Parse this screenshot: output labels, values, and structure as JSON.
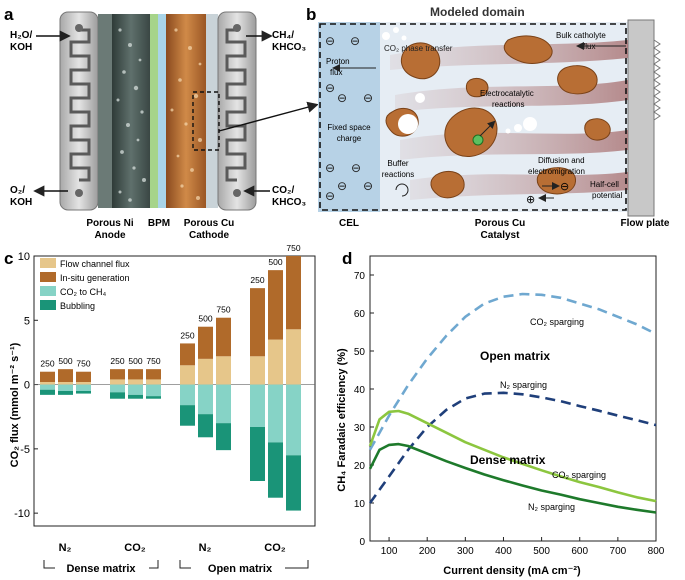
{
  "panel_a": {
    "letter": "a",
    "top_left_in": [
      "H₂O/",
      "KOH"
    ],
    "bottom_left_out": [
      "O₂/",
      "KOH"
    ],
    "top_right_out": [
      "CH₄/",
      "KHCO₃"
    ],
    "bottom_right_in": [
      "CO₂/",
      "KHCO₃"
    ],
    "labels": {
      "anode": [
        "Porous Ni",
        "Anode"
      ],
      "bpm": "BPM",
      "cathode": [
        "Porous Cu",
        "Cathode"
      ]
    }
  },
  "panel_b": {
    "letter": "b",
    "title": "Modeled domain",
    "cel_label": "CEL",
    "catalyst_label": [
      "Porous Cu",
      "Catalyst"
    ],
    "flow_plate_label": "Flow plate",
    "proton_flux": [
      "Proton",
      "flux"
    ],
    "fixed_charge": [
      "Fixed space",
      "charge"
    ],
    "co2_transfer": "CO₂ phase transfer",
    "bulk_flux": [
      "Bulk catholyte",
      "flux"
    ],
    "electrocatalytic": [
      "Electrocatalytic",
      "reactions"
    ],
    "buffer": [
      "Buffer",
      "reactions"
    ],
    "diffusion": [
      "Diffusion and",
      "electromigration"
    ],
    "half_cell": [
      "Half-cell",
      "potential"
    ],
    "minus": "⊖",
    "plus": "⊕"
  },
  "panel_c": {
    "letter": "c",
    "legend": [
      "Flow channel flux",
      "In-situ generation",
      "CO₂ to CH₄",
      "Bubbling"
    ],
    "legend_colors": [
      "#e6c68a",
      "#b06a2a",
      "#86d3c6",
      "#1a9478"
    ],
    "ylabel": "CO₂ flux (mmol m⁻² s⁻¹)",
    "yticks": [
      "10",
      "5",
      "0",
      "-5",
      "-10"
    ],
    "group_labels": [
      "N₂",
      "CO₂",
      "N₂",
      "CO₂"
    ],
    "matrix_labels": [
      "Dense matrix",
      "Open matrix"
    ],
    "bar_labels": [
      "250",
      "500",
      "750"
    ],
    "chart_data": {
      "type": "bar",
      "ylim": [
        -11,
        10
      ],
      "series_order": [
        "Flow channel flux",
        "In-situ generation",
        "CO₂ to CH₄",
        "Bubbling"
      ],
      "groups": [
        {
          "name": "Dense N₂",
          "bars": [
            {
              "cd": 250,
              "flow": 0.2,
              "insitu": 0.8,
              "ch4": -0.4,
              "bubble": -0.4
            },
            {
              "cd": 500,
              "flow": 0.2,
              "insitu": 1.0,
              "ch4": -0.5,
              "bubble": -0.3
            },
            {
              "cd": 750,
              "flow": 0.2,
              "insitu": 0.8,
              "ch4": -0.5,
              "bubble": -0.2
            }
          ]
        },
        {
          "name": "Dense CO₂",
          "bars": [
            {
              "cd": 250,
              "flow": 0.4,
              "insitu": 0.8,
              "ch4": -0.6,
              "bubble": -0.5
            },
            {
              "cd": 500,
              "flow": 0.4,
              "insitu": 0.8,
              "ch4": -0.8,
              "bubble": -0.3
            },
            {
              "cd": 750,
              "flow": 0.4,
              "insitu": 0.8,
              "ch4": -0.9,
              "bubble": -0.2
            }
          ]
        },
        {
          "name": "Open N₂",
          "bars": [
            {
              "cd": 250,
              "flow": 1.5,
              "insitu": 1.7,
              "ch4": -1.6,
              "bubble": -1.6
            },
            {
              "cd": 500,
              "flow": 2.0,
              "insitu": 2.5,
              "ch4": -2.3,
              "bubble": -1.8
            },
            {
              "cd": 750,
              "flow": 2.2,
              "insitu": 3.0,
              "ch4": -3.0,
              "bubble": -2.1
            }
          ]
        },
        {
          "name": "Open CO₂",
          "bars": [
            {
              "cd": 250,
              "flow": 2.2,
              "insitu": 5.3,
              "ch4": -3.3,
              "bubble": -4.2
            },
            {
              "cd": 500,
              "flow": 3.5,
              "insitu": 5.4,
              "ch4": -4.5,
              "bubble": -4.3
            },
            {
              "cd": 750,
              "flow": 4.3,
              "insitu": 5.7,
              "ch4": -5.5,
              "bubble": -4.3
            }
          ]
        }
      ]
    }
  },
  "panel_d": {
    "letter": "d",
    "ylabel": "CH₄ Faradaic efficiency (%)",
    "xlabel": "Current density (mA cm⁻²)",
    "xticks": [
      "100",
      "200",
      "300",
      "400",
      "500",
      "600",
      "700",
      "800"
    ],
    "yticks": [
      "0",
      "10",
      "20",
      "30",
      "40",
      "50",
      "60",
      "70"
    ],
    "open_label": "Open matrix",
    "dense_label": "Dense matrix",
    "curve_labels": {
      "open_co2": "CO₂ sparging",
      "open_n2": "N₂ sparging",
      "dense_co2": "CO₂ sparging",
      "dense_n2": "N₂ sparging"
    },
    "chart_data": {
      "type": "line",
      "xlim": [
        50,
        800
      ],
      "ylim": [
        0,
        75
      ],
      "xlabel": "Current density (mA cm⁻²)",
      "ylabel": "CH₄ Faradaic efficiency (%)",
      "series": [
        {
          "name": "Open matrix CO₂ sparging",
          "color": "#6fa8d0",
          "dashed": true,
          "x": [
            50,
            100,
            150,
            200,
            250,
            300,
            350,
            400,
            450,
            500,
            550,
            600,
            650,
            700,
            750,
            800
          ],
          "y": [
            24,
            33,
            41,
            48,
            54,
            59,
            62.5,
            64.3,
            65,
            64.8,
            64,
            62.5,
            61,
            59,
            57,
            54.5
          ]
        },
        {
          "name": "Open matrix N₂ sparging",
          "color": "#1f3f7a",
          "dashed": true,
          "x": [
            50,
            100,
            150,
            200,
            250,
            300,
            350,
            400,
            450,
            500,
            550,
            600,
            650,
            700,
            750,
            800
          ],
          "y": [
            10,
            17,
            24,
            30,
            34.5,
            37.5,
            38.8,
            39,
            38.6,
            37.8,
            36.8,
            35.5,
            34.3,
            33,
            31.8,
            30.5
          ]
        },
        {
          "name": "Dense matrix CO₂ sparging",
          "color": "#8cc63f",
          "dashed": false,
          "x": [
            50,
            75,
            100,
            125,
            150,
            200,
            250,
            300,
            350,
            400,
            450,
            500,
            550,
            600,
            650,
            700,
            750,
            800
          ],
          "y": [
            25,
            32,
            34,
            34.2,
            33.5,
            31,
            28.5,
            26,
            24,
            22,
            20.3,
            18.6,
            17,
            15.5,
            14.2,
            12.8,
            11.5,
            10.5
          ]
        },
        {
          "name": "Dense matrix N₂ sparging",
          "color": "#1e7a2b",
          "dashed": false,
          "x": [
            50,
            75,
            100,
            125,
            150,
            200,
            250,
            300,
            350,
            400,
            450,
            500,
            550,
            600,
            650,
            700,
            750,
            800
          ],
          "y": [
            19,
            24,
            25.3,
            25.5,
            25,
            23,
            21,
            19.2,
            17.5,
            16,
            14.6,
            13.3,
            12.2,
            11,
            10,
            9,
            8.2,
            7.5
          ]
        }
      ]
    }
  }
}
